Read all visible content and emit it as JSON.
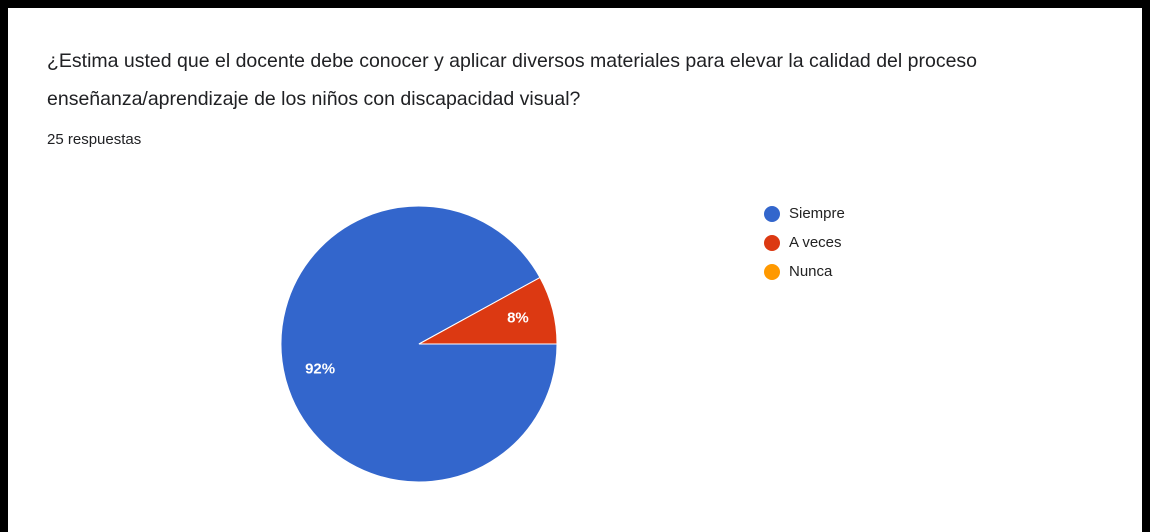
{
  "chart_data": {
    "type": "pie",
    "title": "¿Estima usted que el docente debe conocer y aplicar diversos materiales para elevar la calidad del proceso enseñanza/aprendizaje de los niños con discapacidad visual?",
    "subtitle": "25 respuestas",
    "categories": [
      "Siempre",
      "A veces",
      "Nunca"
    ],
    "values": [
      92,
      8,
      0
    ],
    "value_labels": [
      "92%",
      "8%",
      null
    ],
    "colors": [
      "#3366cc",
      "#dc3912",
      "#ff9900"
    ],
    "legend": "right"
  }
}
